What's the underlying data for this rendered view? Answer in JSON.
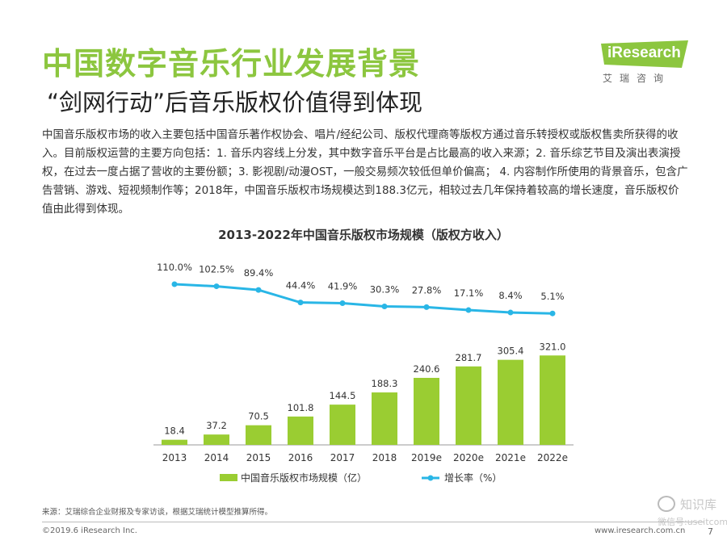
{
  "header": {
    "title": "中国数字音乐行业发展背景",
    "subtitle": "“剑网行动”后音乐版权价值得到体现"
  },
  "logo": {
    "name": "iResearch",
    "sub": "艾瑞咨询"
  },
  "body_text": "中国音乐版权市场的收入主要包括中国音乐著作权协会、唱片/经纪公司、版权代理商等版权方通过音乐转授权或版权售卖所获得的收入。目前版权运营的主要方向包括：1. 音乐内容线上分发，其中数字音乐平台是占比最高的收入来源；2. 音乐综艺节目及演出表演授权，在过去一度占据了营收的主要份额；3. 影视剧/动漫OST，一般交易频次较低但单价偏高； 4. 内容制作所使用的背景音乐，包含广告营销、游戏、短视频制作等；2018年，中国音乐版权市场规模达到188.3亿元，相较过去几年保持着较高的增长速度，音乐版权价值由此得到体现。",
  "chart_data": {
    "type": "bar",
    "title": "2013-2022年中国音乐版权市场规模（版权方收入）",
    "categories": [
      "2013",
      "2014",
      "2015",
      "2016",
      "2017",
      "2018",
      "2019e",
      "2020e",
      "2021e",
      "2022e"
    ],
    "series": [
      {
        "name": "中国音乐版权市场规模（亿",
        "name_suffix": "）",
        "type": "bar",
        "values": [
          18.4,
          37.2,
          70.5,
          101.8,
          144.5,
          188.3,
          240.6,
          281.7,
          305.4,
          321.0
        ],
        "labels": [
          "18.4",
          "37.2",
          "70.5",
          "101.8",
          "144.5",
          "188.3",
          "240.6",
          "281.7",
          "305.4",
          "321.0"
        ],
        "color": "#9acd32"
      },
      {
        "name": "增长率（%）",
        "type": "line",
        "values": [
          110.0,
          102.5,
          89.4,
          44.4,
          41.9,
          30.3,
          27.8,
          17.1,
          8.4,
          5.1
        ],
        "labels": [
          "110.0%",
          "102.5%",
          "89.4%",
          "44.4%",
          "41.9%",
          "30.3%",
          "27.8%",
          "17.1%",
          "8.4%",
          "5.1%"
        ],
        "color": "#29b6e6"
      }
    ],
    "legend_position": "bottom",
    "grid": false
  },
  "source": "来源：艾瑞综合企业财报及专家访谈，根据艾瑞统计模型推算所得。",
  "footer": {
    "copyright": "©2019.6 iResearch Inc.",
    "site": "www.iresearch.com.cn",
    "page": "7"
  },
  "watermark": {
    "name": "知识库",
    "id": "微信号:useitcomcn"
  },
  "colors": {
    "brand_green": "#8cc63f",
    "bar": "#9acd32",
    "line": "#29b6e6"
  }
}
